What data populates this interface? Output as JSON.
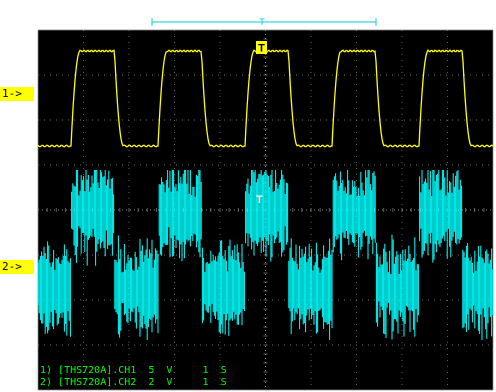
{
  "channels": [
    {
      "marker": "1->",
      "label": "1) [THS720A].CH1  5  V     1  S",
      "color": "#ffff00"
    },
    {
      "marker": "2->",
      "label": "2) [THS720A].CH2  2  V     1  S",
      "color": "#00ffff"
    }
  ],
  "trigger": {
    "glyph": "T",
    "trace_marker": "T",
    "ruler_label": "T",
    "color": "#00cfd6"
  },
  "colors": {
    "screen_bg": "#000000",
    "grid": "#8a8a8a",
    "ch1_trace": "#ffff00",
    "ch2_trace": "#00ffff",
    "label_text": "#00ff00",
    "marker_bg": "#ffff00"
  },
  "icons": {
    "trigger": "trigger-position-icon",
    "ruler": "record-window-ruler-icon"
  }
}
